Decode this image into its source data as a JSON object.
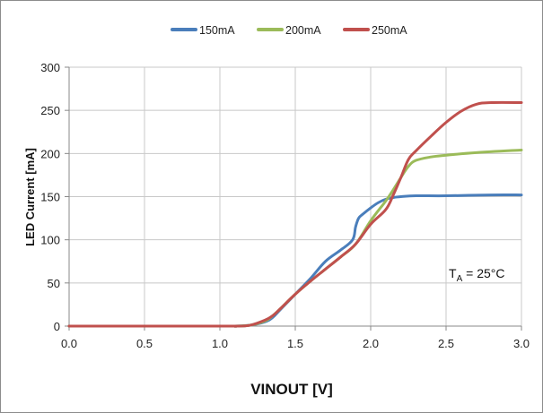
{
  "chart_data": {
    "type": "line",
    "title": "",
    "xlabel": "VINOUT [V]",
    "ylabel": "LED Current [mA]",
    "xlim": [
      0,
      3.0
    ],
    "ylim": [
      0,
      300
    ],
    "x_ticks": [
      "0.0",
      "0.5",
      "1.0",
      "1.5",
      "2.0",
      "2.5",
      "3.0"
    ],
    "y_ticks": [
      "0",
      "50",
      "100",
      "150",
      "200",
      "250",
      "300"
    ],
    "grid": true,
    "legend_position": "top-center",
    "annotation": {
      "text": "TA = 25°C",
      "main": "T",
      "sub": "A",
      "rest": " = 25°C"
    },
    "series": [
      {
        "name": "150mA",
        "color": "#4a7ebb",
        "x": [
          0,
          1.0,
          1.1,
          1.2,
          1.3,
          1.35,
          1.4,
          1.5,
          1.6,
          1.7,
          1.8,
          1.88,
          1.9,
          1.92,
          1.95,
          2.0,
          2.05,
          2.1,
          2.15,
          2.2,
          2.3,
          2.5,
          2.8,
          3.0
        ],
        "y": [
          0,
          0,
          0,
          1,
          5,
          10,
          19,
          37,
          55,
          75,
          88,
          100,
          115,
          125,
          130,
          137,
          143,
          147,
          149,
          150,
          151,
          151,
          152,
          152
        ]
      },
      {
        "name": "200mA",
        "color": "#9bbb59",
        "x": [
          0,
          1.0,
          1.1,
          1.2,
          1.3,
          1.35,
          1.4,
          1.5,
          1.6,
          1.7,
          1.8,
          1.9,
          2.0,
          2.1,
          2.15,
          2.2,
          2.25,
          2.3,
          2.4,
          2.5,
          2.7,
          3.0
        ],
        "y": [
          0,
          0,
          0,
          1,
          6,
          12,
          20,
          37,
          52,
          66,
          80,
          95,
          122,
          145,
          158,
          172,
          185,
          192,
          196,
          198,
          201,
          204
        ]
      },
      {
        "name": "250mA",
        "color": "#c0504d",
        "x": [
          0,
          1.0,
          1.1,
          1.2,
          1.3,
          1.35,
          1.4,
          1.5,
          1.6,
          1.7,
          1.8,
          1.9,
          2.0,
          2.1,
          2.15,
          2.2,
          2.25,
          2.3,
          2.4,
          2.5,
          2.6,
          2.7,
          2.8,
          3.0
        ],
        "y": [
          0,
          0,
          0,
          1,
          7,
          12,
          20,
          37,
          52,
          66,
          80,
          95,
          118,
          135,
          152,
          172,
          193,
          203,
          220,
          236,
          249,
          257,
          259,
          259
        ]
      }
    ]
  }
}
